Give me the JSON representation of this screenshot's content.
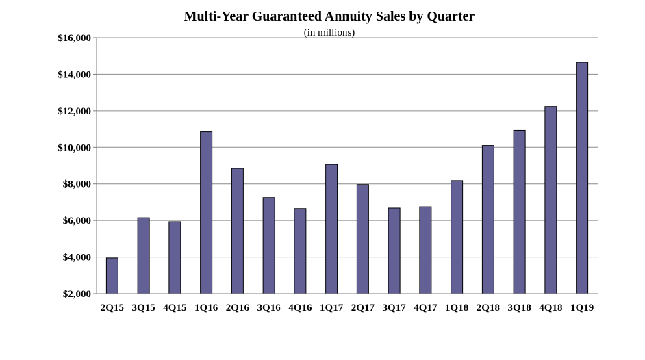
{
  "chart_data": {
    "type": "bar",
    "title": "Multi-Year Guaranteed Annuity Sales by Quarter",
    "subtitle": "(in millions)",
    "xlabel": "",
    "ylabel": "",
    "categories": [
      "2Q15",
      "3Q15",
      "4Q15",
      "1Q16",
      "2Q16",
      "3Q16",
      "4Q16",
      "1Q17",
      "2Q17",
      "3Q17",
      "4Q17",
      "1Q18",
      "2Q18",
      "3Q18",
      "4Q18",
      "1Q19"
    ],
    "values": [
      3950,
      6150,
      5930,
      10850,
      8850,
      7250,
      6650,
      9070,
      7960,
      6680,
      6750,
      8180,
      10100,
      10930,
      12230,
      14650
    ],
    "ylim": [
      2000,
      16000
    ],
    "yticks": [
      2000,
      4000,
      6000,
      8000,
      10000,
      12000,
      14000,
      16000
    ],
    "ytick_labels": [
      "$2,000",
      "$4,000",
      "$6,000",
      "$8,000",
      "$10,000",
      "$12,000",
      "$14,000",
      "$16,000"
    ],
    "grid": true,
    "bar_color": "#636096"
  }
}
